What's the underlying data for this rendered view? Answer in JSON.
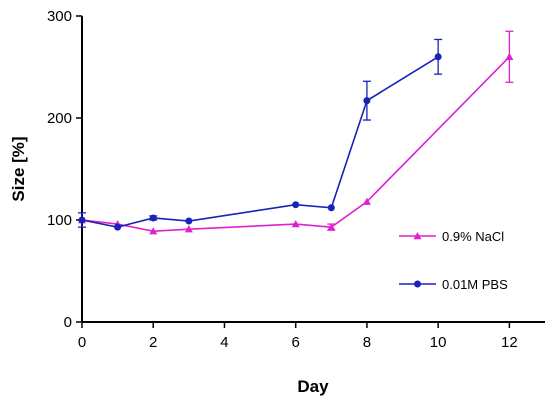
{
  "chart_data": {
    "type": "line",
    "title": "",
    "xlabel": "Day",
    "ylabel": "Size [%]",
    "xlim": [
      0,
      13
    ],
    "ylim": [
      0,
      300
    ],
    "xticks": [
      0,
      2,
      4,
      6,
      8,
      10,
      12
    ],
    "yticks": [
      0,
      100,
      200,
      300
    ],
    "grid": false,
    "legend_position": "right",
    "series": [
      {
        "name": "0.9% NaCl",
        "color": "#e020d0",
        "marker": "triangle",
        "x": [
          0,
          1,
          2,
          3,
          6,
          7,
          8,
          12
        ],
        "y": [
          100,
          96,
          89,
          91,
          96,
          93,
          118,
          260
        ],
        "err": [
          0,
          0,
          0,
          0,
          0,
          3,
          0,
          25
        ]
      },
      {
        "name": "0.01M PBS",
        "color": "#1a22b8",
        "marker": "circle",
        "x": [
          0,
          1,
          2,
          3,
          6,
          7,
          8,
          10
        ],
        "y": [
          100,
          93,
          102,
          99,
          115,
          112,
          217,
          260
        ],
        "err": [
          7,
          0,
          2,
          0,
          0,
          0,
          19,
          17
        ]
      }
    ]
  }
}
